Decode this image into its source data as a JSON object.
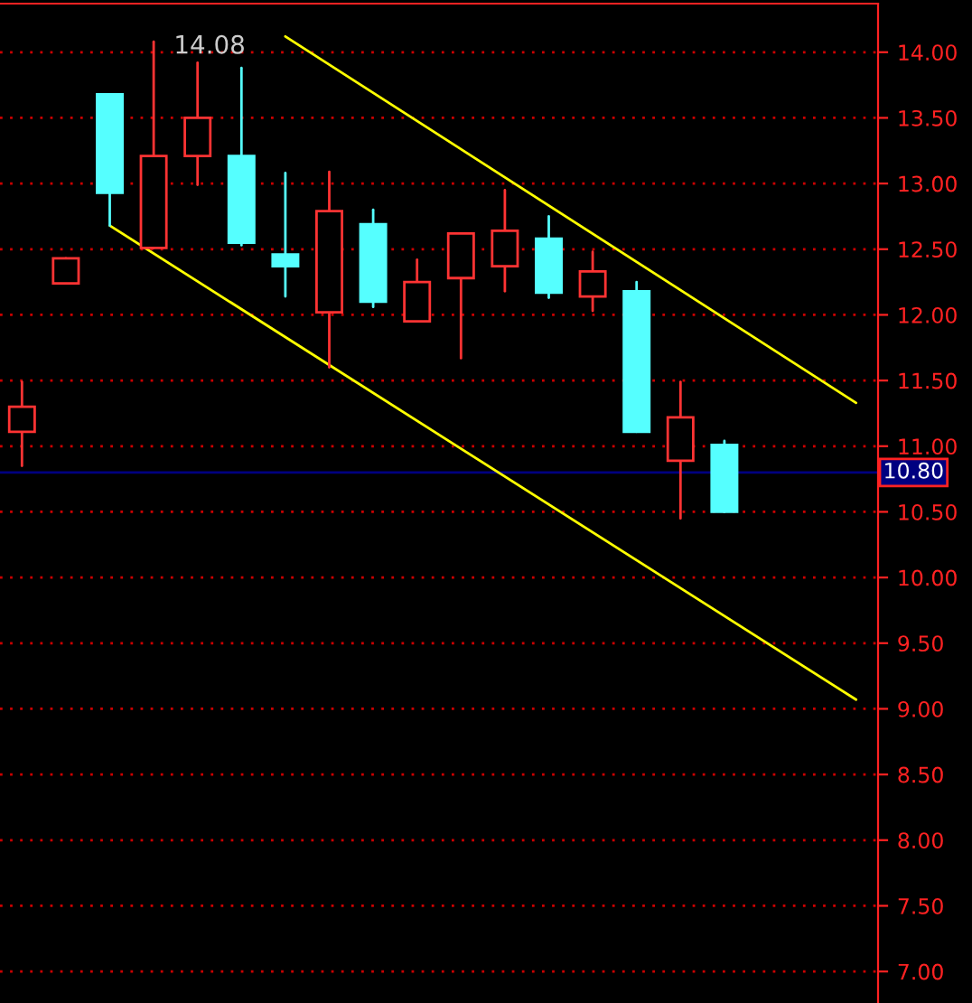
{
  "chart_data": {
    "type": "candlestick",
    "categories": [
      null,
      null,
      null,
      null,
      null,
      null,
      null,
      null,
      null,
      null,
      null,
      null,
      null,
      null,
      null,
      null,
      null,
      null,
      null,
      null
    ],
    "ylim": [
      6.76,
      14.37
    ],
    "yticks": [
      {
        "value": 7,
        "label": "7.00"
      },
      {
        "value": 7.5,
        "label": "7.50"
      },
      {
        "value": 8,
        "label": "8.00"
      },
      {
        "value": 8.5,
        "label": "8.50"
      },
      {
        "value": 9,
        "label": "9.00"
      },
      {
        "value": 9.5,
        "label": "9.50"
      },
      {
        "value": 10,
        "label": "10.00"
      },
      {
        "value": 10.5,
        "label": "10.50"
      },
      {
        "value": 11,
        "label": "11.00"
      },
      {
        "value": 11.5,
        "label": "11.50"
      },
      {
        "value": 12,
        "label": "12.00"
      },
      {
        "value": 12.5,
        "label": "12.50"
      },
      {
        "value": 13,
        "label": "13.00"
      },
      {
        "value": 13.5,
        "label": "13.50"
      },
      {
        "value": 14,
        "label": "14.00"
      }
    ],
    "tick_labels": "y",
    "grid": "y",
    "series": [
      {
        "ohlc": [
          [
            11.11,
            11.49,
            10.85,
            11.3
          ],
          [
            12.24,
            12.43,
            12.24,
            12.43
          ],
          [
            13.68,
            13.68,
            12.68,
            12.93
          ],
          [
            12.51,
            14.08,
            12.51,
            13.21
          ],
          [
            13.21,
            13.92,
            12.99,
            13.5
          ],
          [
            13.21,
            13.88,
            12.53,
            12.55
          ],
          [
            12.46,
            13.08,
            12.14,
            12.37
          ],
          [
            12.02,
            13.09,
            11.6,
            12.79
          ],
          [
            12.69,
            12.8,
            12.06,
            12.1
          ],
          [
            11.95,
            12.42,
            11.95,
            12.25
          ],
          [
            12.28,
            12.62,
            11.67,
            12.62
          ],
          [
            12.37,
            12.95,
            12.18,
            12.64
          ],
          [
            12.58,
            12.75,
            12.13,
            12.17
          ],
          [
            12.14,
            12.48,
            12.03,
            12.33
          ],
          [
            12.18,
            12.25,
            11.11,
            11.11
          ],
          [
            10.89,
            11.49,
            10.45,
            11.22
          ],
          [
            11.01,
            11.04,
            10.5,
            10.5
          ],
          null,
          null,
          null
        ],
        "colors": [
          "#ff3333",
          "#ff3333",
          "#55ffff",
          "#ff3333",
          "#ff3333",
          "#55ffff",
          "#55ffff",
          "#ff3333",
          "#55ffff",
          "#ff3333",
          "#ff3333",
          "#ff3333",
          "#55ffff",
          "#ff3333",
          "#55ffff",
          "#ff3333",
          "#55ffff",
          null,
          null,
          null
        ]
      },
      {
        "type": "line",
        "values": [
          null,
          null,
          null,
          null,
          null,
          null,
          14.12,
          null,
          null,
          null,
          null,
          null,
          null,
          null,
          null,
          null,
          null,
          null,
          null,
          11.33
        ],
        "color": "#ffff00"
      },
      {
        "type": "line",
        "values": [
          null,
          null,
          12.68,
          null,
          null,
          null,
          null,
          null,
          null,
          null,
          null,
          null,
          null,
          null,
          null,
          null,
          null,
          null,
          null,
          9.07
        ],
        "color": "#ffff00"
      }
    ],
    "ref_lines": [
      {
        "axis": "y",
        "value": 10.8,
        "label": "10.80",
        "color": "#000080"
      }
    ],
    "annotations": [
      "14.08"
    ]
  }
}
